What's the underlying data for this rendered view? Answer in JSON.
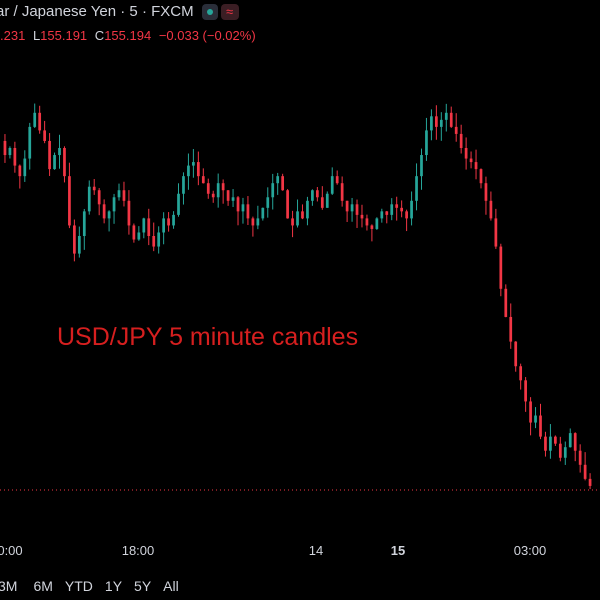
{
  "header": {
    "title": "ar / Japanese Yen · 5 · FXCM",
    "wave_glyph": "≈",
    "open_fragment": ".231",
    "low_label": "L",
    "low_value": "155.191",
    "close_label": "C",
    "close_value": "155.194",
    "change": "−0.033 (−0.02%)"
  },
  "annotation": "USD/JPY 5 minute candles",
  "time_labels": [
    "0:00",
    "18:00",
    "14",
    "15",
    "03:00"
  ],
  "range_buttons": [
    "3M",
    "6M",
    "YTD",
    "1Y",
    "5Y",
    "All"
  ],
  "colors": {
    "up": "#26a69a",
    "down": "#f23645",
    "background": "#000000",
    "annotation": "#d61f1f"
  },
  "chart_data": {
    "type": "candlestick",
    "title": "",
    "symbol": "USD/JPY",
    "interval": "5",
    "source": "FXCM",
    "x_tick_labels": [
      "0:00",
      "18:00",
      "14",
      "15",
      "03:00"
    ],
    "last_close": 155.194,
    "series": [
      {
        "y": [
          0.62,
          0.58,
          0.6,
          0.55,
          0.52,
          0.57,
          0.66,
          0.7,
          0.65,
          0.62,
          0.54,
          0.58,
          0.6,
          0.52,
          0.38,
          0.3
        ]
      },
      {
        "y": [
          0.3,
          0.35,
          0.42,
          0.49,
          0.48,
          0.44,
          0.4,
          0.42,
          0.46,
          0.48,
          0.45,
          0.38,
          0.34,
          0.36,
          0.4,
          0.35
        ]
      },
      {
        "y": [
          0.35,
          0.32,
          0.36,
          0.4,
          0.38,
          0.41,
          0.47,
          0.52,
          0.55,
          0.56,
          0.52,
          0.5,
          0.47,
          0.46,
          0.5,
          0.48
        ]
      },
      {
        "y": [
          0.48,
          0.45,
          0.46,
          0.42,
          0.44,
          0.4,
          0.38,
          0.4,
          0.43,
          0.46,
          0.5,
          0.52,
          0.48,
          0.4,
          0.38,
          0.42
        ]
      },
      {
        "y": [
          0.42,
          0.4,
          0.45,
          0.48,
          0.46,
          0.43,
          0.47,
          0.52,
          0.5,
          0.45,
          0.42,
          0.44,
          0.41,
          0.4,
          0.38,
          0.37
        ]
      },
      {
        "y": [
          0.37,
          0.4,
          0.42,
          0.41,
          0.44,
          0.43,
          0.42,
          0.4,
          0.45,
          0.52,
          0.58,
          0.65,
          0.69,
          0.66,
          0.68,
          0.7
        ]
      },
      {
        "y": [
          0.7,
          0.66,
          0.64,
          0.6,
          0.57,
          0.56,
          0.54,
          0.5,
          0.45,
          0.4,
          0.32,
          0.2,
          0.12,
          0.05,
          -0.02,
          -0.06
        ]
      },
      {
        "y": [
          -0.06,
          -0.12,
          -0.18,
          -0.16,
          -0.22,
          -0.26,
          -0.22,
          -0.24,
          -0.28,
          -0.25,
          -0.21,
          -0.26,
          -0.3,
          -0.34,
          -0.36
        ]
      }
    ]
  }
}
